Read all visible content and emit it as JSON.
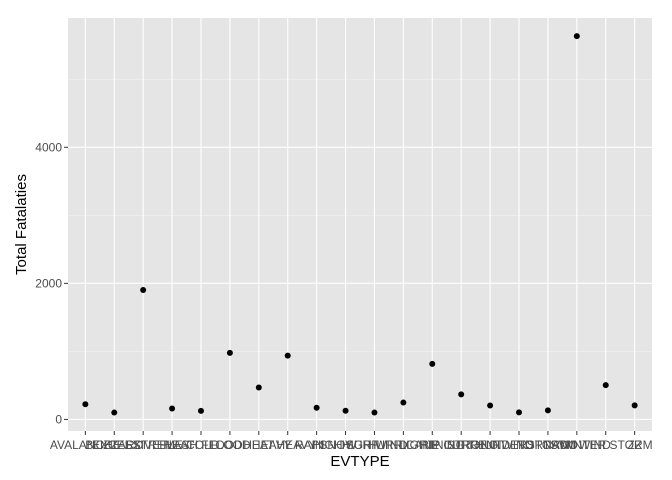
{
  "chart_data": {
    "type": "scatter",
    "xlabel": "EVTYPE",
    "ylabel": "Total Fatalaties",
    "ylim": [
      -170,
      5900
    ],
    "yticks": [
      0,
      2000,
      4000
    ],
    "grid": true,
    "colors": {
      "panel": "#e5e5e5",
      "grid_major": "#ffffff",
      "grid_minor": "#f2f2f2",
      "point": "#000000"
    },
    "categories": [
      "AVALANCHE",
      "BLIZZARD",
      "EXCESSIVE HEAT",
      "EXTREME COLD",
      "FLASH FLOOD",
      "FLOOD",
      "HEAT",
      "HEAVY RAIN",
      "HEAVY SNOW",
      "HIGH SURF",
      "HIGH WIND",
      "HURRICANE",
      "LIGHTNING",
      "RIP CURRENT",
      "STRONG WIND",
      "THUNDERSTORM",
      "TORNADO",
      "TSTM WIND",
      "WINTER STORM",
      "ZZ"
    ],
    "values": [
      224,
      101,
      1903,
      160,
      125,
      978,
      470,
      937,
      171,
      127,
      101,
      248,
      817,
      368,
      204,
      103,
      133,
      5633,
      504,
      206
    ]
  }
}
